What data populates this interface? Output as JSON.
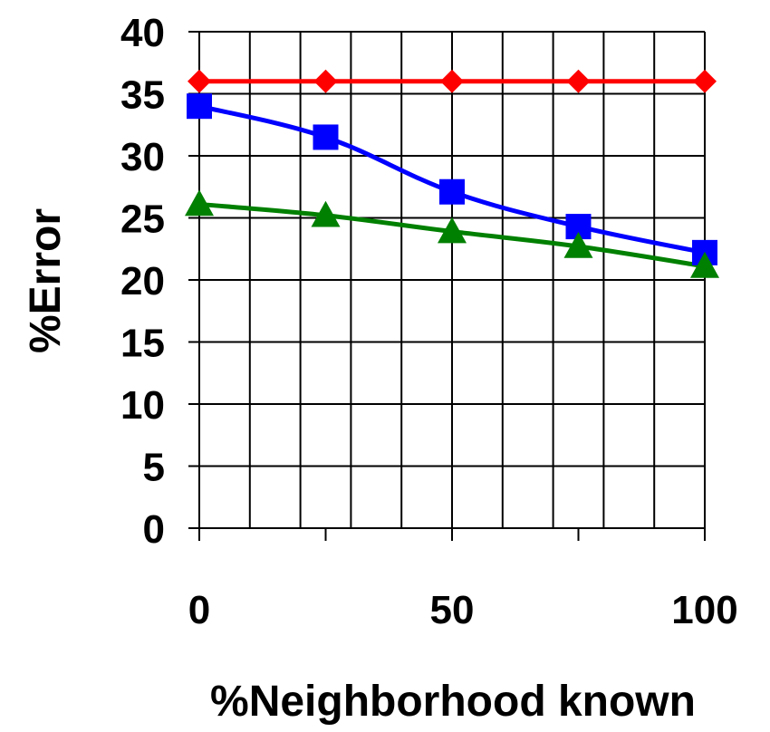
{
  "chart_data": {
    "type": "line",
    "title": "",
    "xlabel": "%Neighborhood known",
    "ylabel": "%Error",
    "xlim": [
      0,
      100
    ],
    "ylim": [
      0,
      40
    ],
    "x_ticks": [
      0,
      50,
      100
    ],
    "x_tick_labels": [
      "0",
      "50",
      "100"
    ],
    "y_ticks": [
      0,
      5,
      10,
      15,
      20,
      25,
      30,
      35,
      40
    ],
    "y_tick_labels": [
      "0",
      "5",
      "10",
      "15",
      "20",
      "25",
      "30",
      "35",
      "40"
    ],
    "grid": true,
    "legend": "none",
    "series": [
      {
        "color": "#ff0000",
        "marker": "diamond",
        "x": [
          0,
          25,
          50,
          75,
          100
        ],
        "values": [
          36,
          36,
          36,
          36,
          36
        ]
      },
      {
        "color": "#0000ff",
        "marker": "square",
        "x": [
          0,
          25,
          50,
          75,
          100
        ],
        "values": [
          34,
          31.5,
          27.1,
          24.3,
          22.2
        ]
      },
      {
        "color": "#008000",
        "marker": "triangle",
        "x": [
          0,
          25,
          50,
          75,
          100
        ],
        "values": [
          26.1,
          25.2,
          23.9,
          22.7,
          21.1
        ]
      }
    ]
  }
}
